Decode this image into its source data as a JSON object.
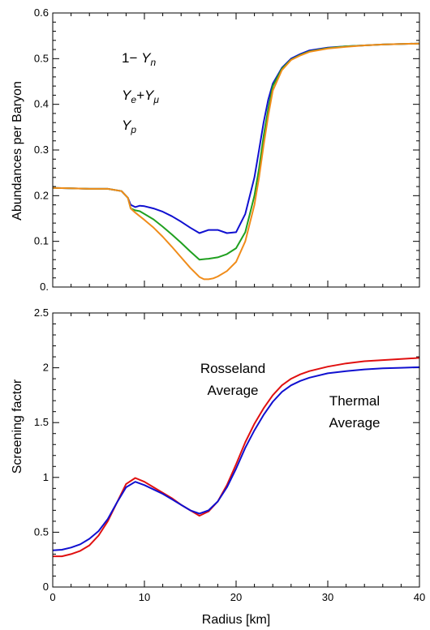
{
  "chart_data": [
    {
      "type": "line",
      "ylabel": "Abundances per Baryon",
      "xlim": [
        0,
        40
      ],
      "ylim": [
        0,
        0.6
      ],
      "xticks": [
        0,
        10,
        20,
        30,
        40
      ],
      "xtick_labels": [
        "",
        "",
        "",
        "",
        ""
      ],
      "yticks": [
        0,
        0.1,
        0.2,
        0.3,
        0.4,
        0.5,
        0.6
      ],
      "ytick_labels": [
        "0.",
        "0.1",
        "0.2",
        "0.3",
        "0.4",
        "0.5",
        "0.6"
      ],
      "grid": false,
      "legend_placement": "top-left (inline colored labels)",
      "series": [
        {
          "color": "#1010d0",
          "label_parts": [
            "1− ",
            "Y",
            "n",
            ""
          ],
          "x": [
            0,
            2,
            4,
            6,
            7.5,
            8.2,
            8.5,
            9,
            9.5,
            10,
            11,
            12,
            13,
            14,
            15,
            16,
            17,
            18,
            19,
            20,
            21,
            22,
            22.5,
            23,
            23.5,
            24,
            25,
            26,
            27,
            28,
            30,
            32,
            34,
            36,
            38,
            40
          ],
          "y": [
            0.217,
            0.216,
            0.215,
            0.215,
            0.21,
            0.195,
            0.18,
            0.175,
            0.178,
            0.177,
            0.172,
            0.165,
            0.155,
            0.143,
            0.13,
            0.118,
            0.125,
            0.125,
            0.118,
            0.12,
            0.16,
            0.24,
            0.3,
            0.36,
            0.41,
            0.445,
            0.48,
            0.5,
            0.51,
            0.518,
            0.524,
            0.527,
            0.529,
            0.531,
            0.532,
            0.533
          ]
        },
        {
          "color": "#20a020",
          "label_parts": [
            "Y",
            "e",
            "+Y",
            "μ"
          ],
          "x": [
            0,
            2,
            4,
            6,
            7.5,
            8.2,
            8.5,
            9,
            9.5,
            10,
            11,
            12,
            13,
            14,
            15,
            16,
            17,
            18,
            19,
            20,
            21,
            22,
            22.5,
            23,
            23.5,
            24,
            25,
            26,
            27,
            28,
            30,
            32,
            34,
            36,
            38,
            40
          ],
          "y": [
            0.217,
            0.216,
            0.215,
            0.215,
            0.21,
            0.195,
            0.172,
            0.168,
            0.166,
            0.16,
            0.148,
            0.132,
            0.115,
            0.097,
            0.078,
            0.06,
            0.062,
            0.065,
            0.072,
            0.085,
            0.12,
            0.2,
            0.26,
            0.33,
            0.39,
            0.44,
            0.478,
            0.498,
            0.508,
            0.516,
            0.523,
            0.527,
            0.529,
            0.531,
            0.532,
            0.533
          ]
        },
        {
          "color": "#f08c1a",
          "label_parts": [
            "Y",
            "p",
            "",
            ""
          ],
          "x": [
            0,
            2,
            4,
            6,
            7.5,
            8.2,
            8.5,
            9,
            9.5,
            10,
            11,
            12,
            13,
            14,
            15,
            16,
            16.5,
            17,
            17.5,
            18,
            19,
            20,
            21,
            22,
            22.5,
            23,
            23.5,
            24,
            25,
            26,
            27,
            28,
            30,
            32,
            34,
            36,
            38,
            40
          ],
          "y": [
            0.217,
            0.216,
            0.215,
            0.215,
            0.21,
            0.195,
            0.172,
            0.163,
            0.155,
            0.147,
            0.13,
            0.11,
            0.088,
            0.065,
            0.042,
            0.022,
            0.017,
            0.017,
            0.019,
            0.023,
            0.035,
            0.055,
            0.1,
            0.18,
            0.24,
            0.31,
            0.375,
            0.43,
            0.475,
            0.497,
            0.507,
            0.515,
            0.522,
            0.526,
            0.529,
            0.531,
            0.532,
            0.533
          ]
        }
      ]
    },
    {
      "type": "line",
      "xlabel": "Radius [km]",
      "ylabel": "Screening factor",
      "xlim": [
        0,
        40
      ],
      "ylim": [
        0,
        2.5
      ],
      "xticks": [
        0,
        10,
        20,
        30,
        40
      ],
      "xtick_labels": [
        "0",
        "10",
        "20",
        "30",
        "40"
      ],
      "yticks": [
        0,
        0.5,
        1,
        1.5,
        2,
        2.5
      ],
      "ytick_labels": [
        "0",
        "0.5",
        "1",
        "1.5",
        "2",
        "2.5"
      ],
      "grid": false,
      "legend_placement": "inline annotations near curves",
      "series": [
        {
          "color": "#e01010",
          "label_lines": [
            "Rosseland",
            "Average"
          ],
          "x": [
            0,
            1,
            2,
            3,
            4,
            5,
            6,
            7,
            8,
            9,
            10,
            11,
            12,
            13,
            14,
            15,
            16,
            17,
            18,
            19,
            20,
            21,
            22,
            23,
            24,
            25,
            26,
            27,
            28,
            30,
            32,
            34,
            36,
            38,
            40
          ],
          "y": [
            0.28,
            0.28,
            0.3,
            0.33,
            0.38,
            0.47,
            0.6,
            0.77,
            0.94,
            0.995,
            0.96,
            0.91,
            0.86,
            0.81,
            0.75,
            0.7,
            0.65,
            0.69,
            0.78,
            0.93,
            1.12,
            1.32,
            1.49,
            1.63,
            1.75,
            1.84,
            1.9,
            1.94,
            1.97,
            2.01,
            2.04,
            2.06,
            2.07,
            2.08,
            2.09
          ]
        },
        {
          "color": "#1010d0",
          "label_lines": [
            "Thermal",
            "Average"
          ],
          "x": [
            0,
            1,
            2,
            3,
            4,
            5,
            6,
            7,
            8,
            9,
            10,
            11,
            12,
            13,
            14,
            15,
            16,
            17,
            18,
            19,
            20,
            21,
            22,
            23,
            24,
            25,
            26,
            27,
            28,
            30,
            32,
            34,
            36,
            38,
            40
          ],
          "y": [
            0.335,
            0.34,
            0.36,
            0.39,
            0.44,
            0.51,
            0.62,
            0.77,
            0.91,
            0.96,
            0.93,
            0.89,
            0.85,
            0.8,
            0.75,
            0.7,
            0.67,
            0.7,
            0.78,
            0.91,
            1.08,
            1.27,
            1.43,
            1.57,
            1.69,
            1.78,
            1.84,
            1.88,
            1.91,
            1.95,
            1.97,
            1.985,
            1.995,
            2.0,
            2.005
          ]
        }
      ]
    }
  ]
}
